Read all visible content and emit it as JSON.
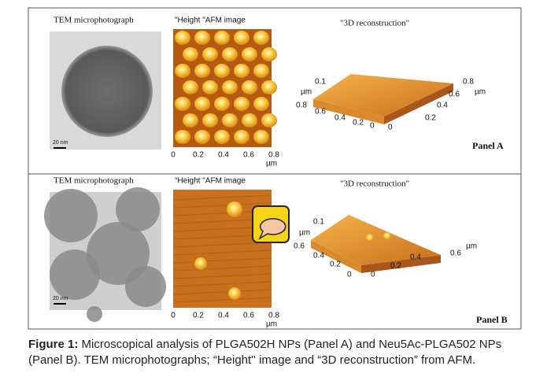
{
  "panels": [
    {
      "tem_title": "TEM microphotograph",
      "afm_title": "\"Height \"AFM image",
      "recon_title": "\"3D reconstruction\"",
      "scale_label": "20 nm",
      "afm_ticks": [
        "0",
        "0.2",
        "0.4",
        "0.6",
        "0.8"
      ],
      "afm_unit": "µm",
      "recon_z": "0.1",
      "recon_z_unit": "µm",
      "recon_left_ticks": [
        "0.8",
        "0.6",
        "0.4",
        "0.2",
        "0"
      ],
      "recon_right_ticks": [
        "0",
        "0.2",
        "0.4",
        "0.6",
        "0.8"
      ],
      "recon_right_unit": "µm",
      "label": "Panel A"
    },
    {
      "tem_title": "TEM microphotograph",
      "afm_title": "\"Height \"AFM image",
      "recon_title": "\"3D reconstruction\"",
      "scale_label": "20 nm",
      "afm_ticks": [
        "0",
        "0.2",
        "0.4",
        "0.6",
        "0.8"
      ],
      "afm_unit": "µm",
      "recon_z": "0.1",
      "recon_z_unit": "µm",
      "recon_left_ticks": [
        "0.6",
        "0.4",
        "0.2",
        "0"
      ],
      "recon_right_ticks": [
        "0",
        "0.2",
        "0.4",
        "0.6"
      ],
      "recon_right_unit": "µm",
      "label": "Panel B"
    }
  ],
  "caption": {
    "label": "Figure 1:",
    "text": " Microscopical analysis of PLGA502H NPs (Panel A) and Neu5Ac-PLGA502 NPs (Panel B). TEM microphotographs; “Height'' image  and “3D reconstruction” from AFM."
  }
}
